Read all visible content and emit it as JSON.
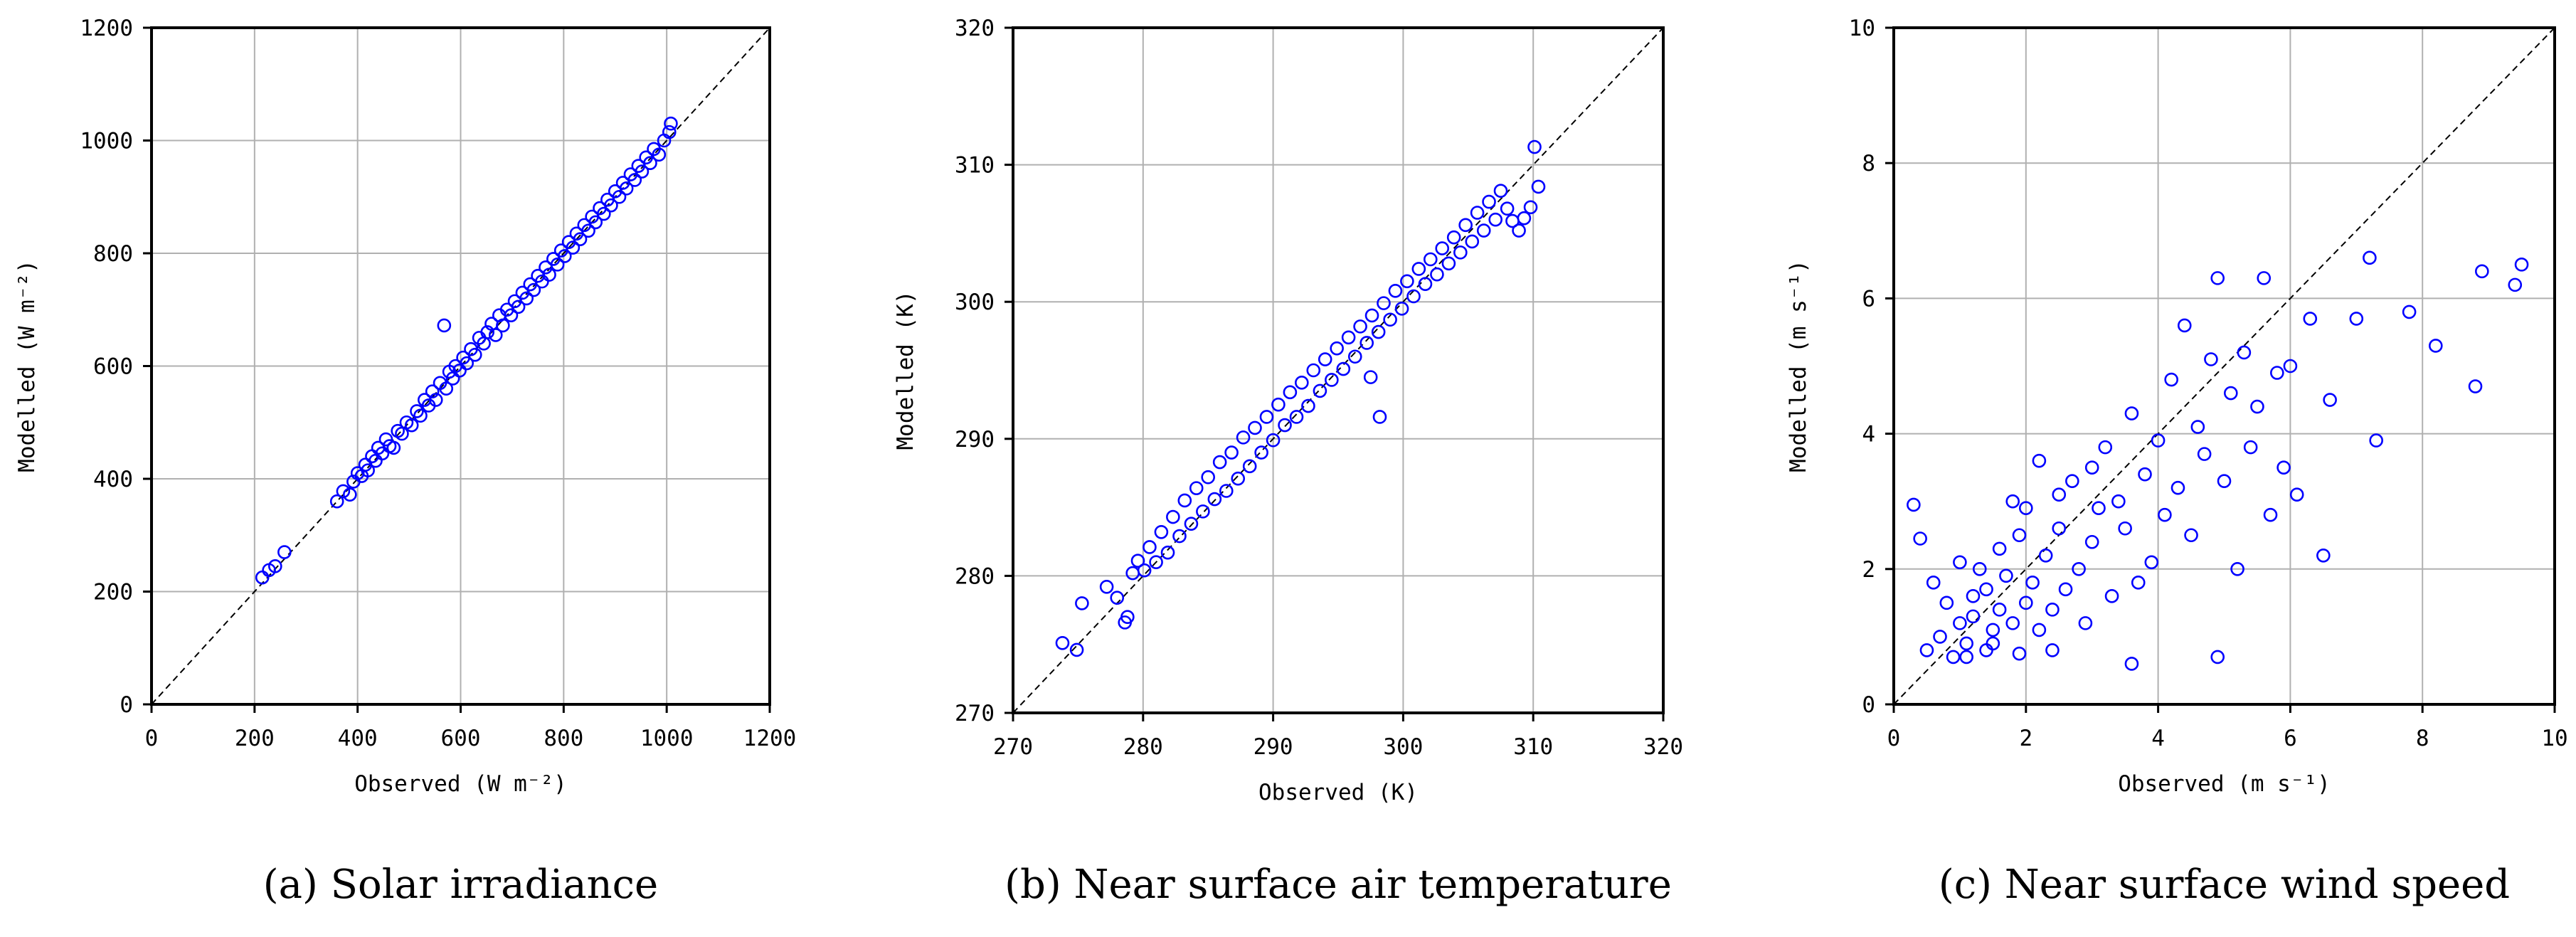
{
  "colors": {
    "marker": "#0000ff",
    "grid": "#b0b0b0",
    "axes": "#000000",
    "reference_line": "#000000"
  },
  "chart_data": [
    {
      "type": "scatter",
      "caption": "(a) Solar irradiance",
      "xlabel": "Observed (W m⁻²)",
      "ylabel": "Modelled (W m⁻²)",
      "xlim": [
        0,
        1200
      ],
      "ylim": [
        0,
        1200
      ],
      "xticks": [
        "0",
        "200",
        "400",
        "600",
        "800",
        "1000",
        "1200"
      ],
      "yticks": [
        "0",
        "200",
        "400",
        "600",
        "800",
        "1000",
        "1200"
      ],
      "grid": true,
      "reference_line": "1:1 dashed",
      "marker": "open circle",
      "series": [
        {
          "name": "Solar irradiance",
          "x": [
            215,
            228,
            240,
            258,
            360,
            372,
            385,
            392,
            400,
            408,
            415,
            420,
            428,
            435,
            440,
            448,
            455,
            462,
            470,
            478,
            486,
            495,
            505,
            515,
            522,
            530,
            538,
            545,
            552,
            560,
            568,
            572,
            578,
            585,
            590,
            598,
            605,
            612,
            620,
            628,
            636,
            645,
            652,
            660,
            668,
            675,
            682,
            690,
            698,
            705,
            712,
            720,
            728,
            735,
            742,
            750,
            758,
            765,
            772,
            780,
            788,
            795,
            802,
            810,
            818,
            825,
            832,
            840,
            848,
            855,
            862,
            870,
            878,
            885,
            892,
            900,
            908,
            915,
            922,
            930,
            938,
            945,
            952,
            960,
            968,
            975,
            985,
            995,
            1005,
            1008
          ],
          "y": [
            225,
            238,
            245,
            270,
            360,
            378,
            372,
            395,
            410,
            405,
            425,
            415,
            440,
            432,
            455,
            445,
            470,
            458,
            455,
            485,
            480,
            500,
            495,
            520,
            512,
            540,
            530,
            555,
            540,
            570,
            672,
            560,
            590,
            578,
            600,
            592,
            615,
            605,
            630,
            620,
            650,
            640,
            660,
            675,
            655,
            690,
            672,
            700,
            690,
            715,
            705,
            730,
            720,
            745,
            735,
            760,
            750,
            775,
            762,
            790,
            780,
            805,
            795,
            820,
            810,
            835,
            825,
            850,
            840,
            865,
            855,
            880,
            870,
            895,
            885,
            910,
            900,
            925,
            915,
            940,
            930,
            955,
            945,
            970,
            960,
            985,
            975,
            1000,
            1015,
            1030
          ]
        }
      ]
    },
    {
      "type": "scatter",
      "caption": "(b) Near surface air temperature",
      "xlabel": "Observed (K)",
      "ylabel": "Modelled (K)",
      "xlim": [
        270,
        320
      ],
      "ylim": [
        270,
        320
      ],
      "xticks": [
        "270",
        "280",
        "290",
        "300",
        "310",
        "320"
      ],
      "yticks": [
        "270",
        "280",
        "290",
        "300",
        "310",
        "320"
      ],
      "grid": true,
      "reference_line": "1:1 dashed",
      "marker": "open circle",
      "series": [
        {
          "name": "Near surface air temperature",
          "x": [
            273.8,
            274.9,
            275.3,
            277.2,
            278.0,
            278.6,
            278.8,
            279.2,
            279.6,
            280.1,
            280.5,
            281.0,
            281.4,
            281.9,
            282.3,
            282.8,
            283.2,
            283.7,
            284.1,
            284.6,
            285.0,
            285.5,
            285.9,
            286.4,
            286.8,
            287.3,
            287.7,
            288.2,
            288.6,
            289.1,
            289.5,
            290.0,
            290.4,
            290.9,
            291.3,
            291.8,
            292.2,
            292.7,
            293.1,
            293.6,
            294.0,
            294.5,
            294.9,
            295.4,
            295.8,
            296.3,
            296.7,
            297.2,
            297.6,
            298.1,
            298.5,
            299.0,
            299.4,
            299.9,
            300.3,
            300.8,
            301.2,
            301.7,
            302.1,
            302.6,
            303.0,
            303.5,
            303.9,
            304.4,
            304.8,
            305.3,
            305.7,
            306.2,
            306.6,
            307.1,
            307.5,
            308.0,
            308.4,
            308.9,
            309.3,
            309.8,
            310.1,
            310.4,
            297.5,
            298.2
          ],
          "y": [
            275.1,
            274.6,
            278.0,
            279.2,
            278.4,
            276.6,
            277.0,
            280.2,
            281.1,
            280.4,
            282.1,
            281.0,
            283.2,
            281.7,
            284.3,
            282.9,
            285.5,
            283.8,
            286.4,
            284.7,
            287.2,
            285.6,
            288.3,
            286.2,
            289.0,
            287.1,
            290.1,
            288.0,
            290.8,
            289.0,
            291.6,
            289.9,
            292.5,
            291.0,
            293.4,
            291.6,
            294.1,
            292.4,
            295.0,
            293.5,
            295.8,
            294.3,
            296.6,
            295.1,
            297.4,
            296.0,
            298.2,
            297.0,
            299.0,
            297.8,
            299.9,
            298.7,
            300.8,
            299.5,
            301.5,
            300.4,
            302.4,
            301.3,
            303.1,
            302.0,
            303.9,
            302.8,
            304.7,
            303.6,
            305.6,
            304.4,
            306.5,
            305.2,
            307.3,
            306.0,
            308.1,
            306.8,
            305.9,
            305.2,
            306.1,
            306.9,
            311.3,
            308.4,
            294.5,
            291.6
          ]
        }
      ]
    },
    {
      "type": "scatter",
      "caption": "(c) Near surface wind speed",
      "xlabel": "Observed (m s⁻¹)",
      "ylabel": "Modelled (m s⁻¹)",
      "xlim": [
        0,
        10
      ],
      "ylim": [
        0,
        10
      ],
      "xticks": [
        "0",
        "2",
        "4",
        "6",
        "8",
        "10"
      ],
      "yticks": [
        "0",
        "2",
        "4",
        "6",
        "8",
        "10"
      ],
      "grid": true,
      "reference_line": "1:1 dashed",
      "marker": "open circle",
      "series": [
        {
          "name": "Near surface wind speed",
          "x": [
            0.3,
            0.4,
            0.5,
            0.6,
            0.7,
            0.8,
            0.9,
            1.0,
            1.0,
            1.1,
            1.2,
            1.2,
            1.3,
            1.4,
            1.4,
            1.5,
            1.6,
            1.6,
            1.7,
            1.8,
            1.8,
            1.9,
            2.0,
            2.0,
            2.1,
            2.2,
            2.2,
            2.3,
            2.4,
            2.5,
            2.5,
            2.6,
            2.7,
            2.8,
            2.9,
            3.0,
            3.0,
            3.1,
            3.2,
            3.3,
            3.4,
            3.5,
            3.6,
            3.7,
            3.8,
            3.9,
            4.0,
            4.1,
            4.2,
            4.3,
            4.4,
            4.5,
            4.6,
            4.7,
            4.8,
            4.9,
            5.0,
            5.1,
            5.2,
            5.3,
            5.4,
            5.5,
            5.6,
            5.7,
            5.8,
            5.9,
            6.0,
            6.1,
            6.3,
            6.5,
            6.6,
            7.0,
            7.2,
            7.3,
            7.8,
            8.2,
            8.8,
            8.9,
            9.4,
            9.5,
            1.1,
            1.5,
            1.9,
            2.4,
            3.6,
            4.9
          ],
          "y": [
            2.95,
            2.45,
            0.8,
            1.8,
            1.0,
            1.5,
            0.7,
            1.2,
            2.1,
            0.9,
            1.6,
            1.3,
            2.0,
            0.8,
            1.7,
            1.1,
            2.3,
            1.4,
            1.9,
            3.0,
            1.2,
            2.5,
            1.5,
            2.9,
            1.8,
            1.1,
            3.6,
            2.2,
            1.4,
            3.1,
            2.6,
            1.7,
            3.3,
            2.0,
            1.2,
            3.5,
            2.4,
            2.9,
            3.8,
            1.6,
            3.0,
            2.6,
            4.3,
            1.8,
            3.4,
            2.1,
            3.9,
            2.8,
            4.8,
            3.2,
            5.6,
            2.5,
            4.1,
            3.7,
            5.1,
            6.3,
            3.3,
            4.6,
            2.0,
            5.2,
            3.8,
            4.4,
            6.3,
            2.8,
            4.9,
            3.5,
            5.0,
            3.1,
            5.7,
            2.2,
            4.5,
            5.7,
            6.6,
            3.9,
            5.8,
            5.3,
            4.7,
            6.4,
            6.2,
            6.5,
            0.7,
            0.9,
            0.75,
            0.8,
            0.6,
            0.7
          ]
        }
      ]
    }
  ]
}
